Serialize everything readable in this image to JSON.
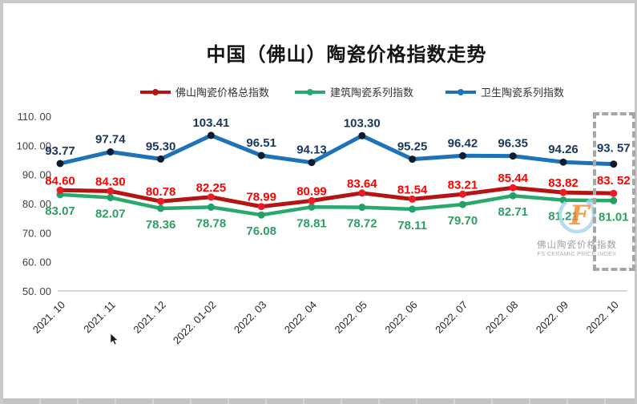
{
  "title": "中国（佛山）陶瓷价格指数走势",
  "legend": [
    {
      "label": "佛山陶瓷价格总指数",
      "color": "#b41512"
    },
    {
      "label": "建筑陶瓷系列指数",
      "color": "#2aa96d"
    },
    {
      "label": "卫生陶瓷系列指数",
      "color": "#1e72b7"
    }
  ],
  "watermark": {
    "logo_letter": "F",
    "cn": "佛山陶瓷价格指数",
    "en": "FS CERAMIC PRICE INDEX"
  },
  "annotations": {
    "highlight_category": "2022.10",
    "highlight_box_color": "#a6a6a6"
  },
  "chart_data": {
    "type": "line",
    "title": "中国（佛山）陶瓷价格指数走势",
    "legend_position": "top",
    "grid": false,
    "ylim": [
      50,
      110
    ],
    "categories": [
      "2021.10",
      "2021.11",
      "2021.12",
      "2022.01-02",
      "2022.03",
      "2022.04",
      "2022.05",
      "2022.06",
      "2022.07",
      "2022.08",
      "2022.09",
      "2022.10"
    ],
    "category_labels": [
      "2021. 10",
      "2021. 11",
      "2021. 12",
      "2022. 01-02",
      "2022. 03",
      "2022. 04",
      "2022. 05",
      "2022. 06",
      "2022. 07",
      "2022. 08",
      "2022. 09",
      "2022. 10"
    ],
    "y_axis": {
      "ticks": [
        {
          "value": 110,
          "label": "110. 00"
        },
        {
          "value": 100,
          "label": "100. 00"
        },
        {
          "value": 90,
          "label": "90. 00"
        },
        {
          "value": 80,
          "label": "80. 00"
        },
        {
          "value": 70,
          "label": "70. 00"
        },
        {
          "value": 60,
          "label": "60. 00"
        },
        {
          "value": 50,
          "label": "50. 00"
        }
      ]
    },
    "series": [
      {
        "name": "佛山陶瓷价格总指数",
        "color": "#b41512",
        "marker_color": "#ed1c24",
        "label_color": "#fe0000",
        "values": [
          84.6,
          84.3,
          80.78,
          82.25,
          78.99,
          80.99,
          83.64,
          81.54,
          83.21,
          85.44,
          83.82,
          83.52
        ],
        "labels": [
          "84.60",
          "84.30",
          "80.78",
          "82.25",
          "78.99",
          "80.99",
          "83.64",
          "81.54",
          "83.21",
          "85.44",
          "83.82",
          "83. 52"
        ]
      },
      {
        "name": "建筑陶瓷系列指数",
        "color": "#2aa96d",
        "marker_color": "#23a066",
        "label_color": "#2e9e64",
        "values": [
          83.07,
          82.07,
          78.36,
          78.78,
          76.08,
          78.81,
          78.72,
          78.11,
          79.7,
          82.71,
          81.21,
          81.01
        ],
        "labels": [
          "83.07",
          "82.07",
          "78.36",
          "78.78",
          "76.08",
          "78.81",
          "78.72",
          "78.11",
          "79.70",
          "82.71",
          "81.21",
          "81.01"
        ]
      },
      {
        "name": "卫生陶瓷系列指数",
        "color": "#1e72b7",
        "marker_color": "#0d1c2e",
        "label_color": "#17375d",
        "values": [
          93.77,
          97.74,
          95.3,
          103.41,
          96.51,
          94.13,
          103.3,
          95.25,
          96.42,
          96.35,
          94.26,
          93.57
        ],
        "labels": [
          "93.77",
          "97.74",
          "95.30",
          "103.41",
          "96.51",
          "94.13",
          "103.30",
          "95.25",
          "96.42",
          "96.35",
          "94.26",
          "93. 57"
        ]
      }
    ]
  }
}
